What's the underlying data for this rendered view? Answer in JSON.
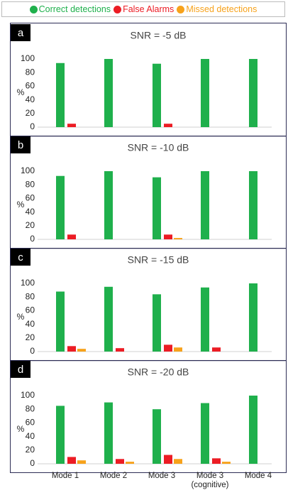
{
  "legend": [
    {
      "name": "Correct detections",
      "color": "#1fb04c"
    },
    {
      "name": "False Alarms",
      "color": "#ec1c24"
    },
    {
      "name": "Missed detections",
      "color": "#f7a21b"
    }
  ],
  "categories": [
    "Mode 1",
    "Mode 2",
    "Mode 3",
    "Mode 3 (cognitive)",
    "Mode 4"
  ],
  "chart_data": [
    {
      "type": "bar",
      "panel": "a",
      "title": "SNR = -5 dB",
      "ylabel": "%",
      "ylim": [
        0,
        100
      ],
      "yticks": [
        0,
        20,
        40,
        60,
        80,
        100
      ],
      "series": [
        {
          "values": [
            94,
            100,
            93,
            100,
            100
          ]
        },
        {
          "values": [
            5,
            0,
            5,
            0,
            0
          ]
        },
        {
          "values": [
            0,
            0,
            0,
            0,
            0
          ]
        }
      ]
    },
    {
      "type": "bar",
      "panel": "b",
      "title": "SNR = -10 dB",
      "ylabel": "%",
      "ylim": [
        0,
        100
      ],
      "yticks": [
        0,
        20,
        40,
        60,
        80,
        100
      ],
      "series": [
        {
          "values": [
            93,
            100,
            91,
            100,
            100
          ]
        },
        {
          "values": [
            7,
            0,
            7,
            0,
            0
          ]
        },
        {
          "values": [
            0,
            0,
            2,
            0,
            0
          ]
        }
      ]
    },
    {
      "type": "bar",
      "panel": "c",
      "title": "SNR = -15 dB",
      "ylabel": "%",
      "ylim": [
        0,
        100
      ],
      "yticks": [
        0,
        20,
        40,
        60,
        80,
        100
      ],
      "series": [
        {
          "values": [
            88,
            95,
            84,
            94,
            100
          ]
        },
        {
          "values": [
            8,
            5,
            10,
            6,
            0
          ]
        },
        {
          "values": [
            4,
            0,
            6,
            0,
            0
          ]
        }
      ]
    },
    {
      "type": "bar",
      "panel": "d",
      "title": "SNR = -20 dB",
      "ylabel": "%",
      "ylim": [
        0,
        100
      ],
      "yticks": [
        0,
        20,
        40,
        60,
        80,
        100
      ],
      "series": [
        {
          "values": [
            85,
            90,
            80,
            89,
            100
          ]
        },
        {
          "values": [
            10,
            7,
            13,
            8,
            0
          ]
        },
        {
          "values": [
            5,
            3,
            7,
            3,
            0
          ]
        }
      ]
    }
  ]
}
